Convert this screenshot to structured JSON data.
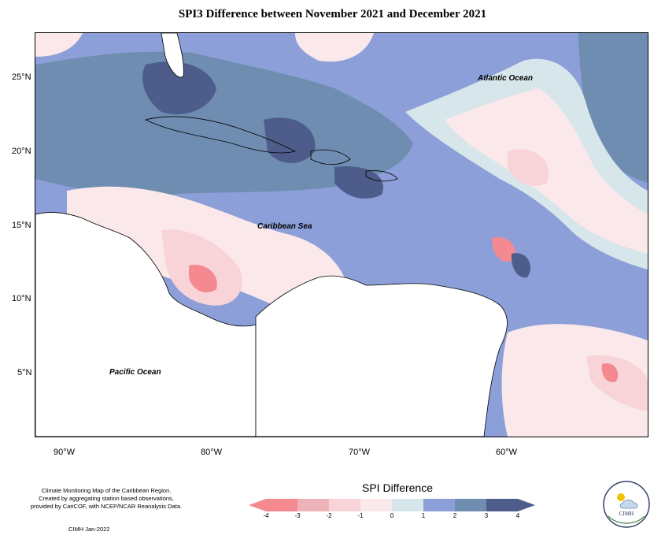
{
  "title": "SPI3 Difference between November 2021 and December 2021",
  "map": {
    "ocean_labels": [
      {
        "key": "atlantic",
        "text": "Atlantic Ocean"
      },
      {
        "key": "caribbean",
        "text": "Caribbean Sea"
      },
      {
        "key": "pacific",
        "text": "Pacific Ocean"
      }
    ],
    "lat_ticks": [
      "25°N",
      "20°N",
      "15°N",
      "10°N",
      "5°N"
    ],
    "lon_ticks": [
      "90°W",
      "80°W",
      "70°W",
      "60°W"
    ]
  },
  "legend": {
    "title": "SPI Difference",
    "ticks": [
      "-4",
      "-3",
      "-2",
      "-1",
      "0",
      "1",
      "2",
      "3",
      "4"
    ],
    "colors": [
      "#f48a90",
      "#edb3b8",
      "#f8d3d8",
      "#fbe8ea",
      "#d6e6ea",
      "#8c9fd9",
      "#6f8db0",
      "#4d5c8a"
    ]
  },
  "credit": {
    "line1": "Climate Monitoring Map of the Caribbean Region.",
    "line2": "Created by aggregating station based observations,",
    "line3": "provided by CariCOF, with NCEP/NCAR Reanalysis Data.",
    "date": "CIMH Jan-2022"
  },
  "logo": {
    "text": "CIMH"
  }
}
